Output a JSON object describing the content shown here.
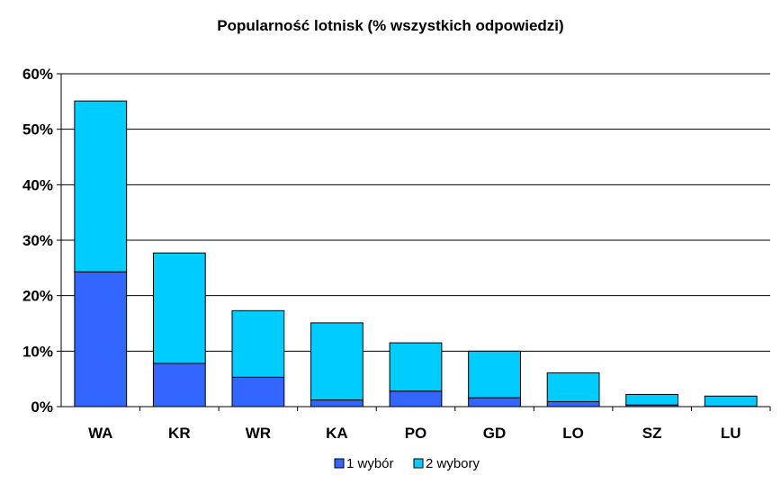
{
  "chart_data": {
    "type": "bar",
    "stacked": true,
    "title": "Popularność lotnisk (% wszystkich odpowiedzi)",
    "categories": [
      "WA",
      "KR",
      "WR",
      "KA",
      "PO",
      "GD",
      "LO",
      "SZ",
      "LU"
    ],
    "series": [
      {
        "name": "1 wybór",
        "color": "#3366ff",
        "values": [
          24.3,
          7.8,
          5.3,
          1.2,
          2.8,
          1.6,
          0.9,
          0.3,
          0.1
        ]
      },
      {
        "name": "2 wybory",
        "color": "#00ccff",
        "values": [
          30.8,
          19.9,
          12.0,
          13.9,
          8.7,
          8.4,
          5.2,
          1.9,
          1.8
        ]
      }
    ],
    "ylim": [
      0,
      60
    ],
    "yticks": [
      0,
      10,
      20,
      30,
      40,
      50,
      60
    ],
    "ytick_labels": [
      "0%",
      "10%",
      "20%",
      "30%",
      "40%",
      "50%",
      "60%"
    ],
    "grid": true,
    "legend_position": "bottom"
  }
}
